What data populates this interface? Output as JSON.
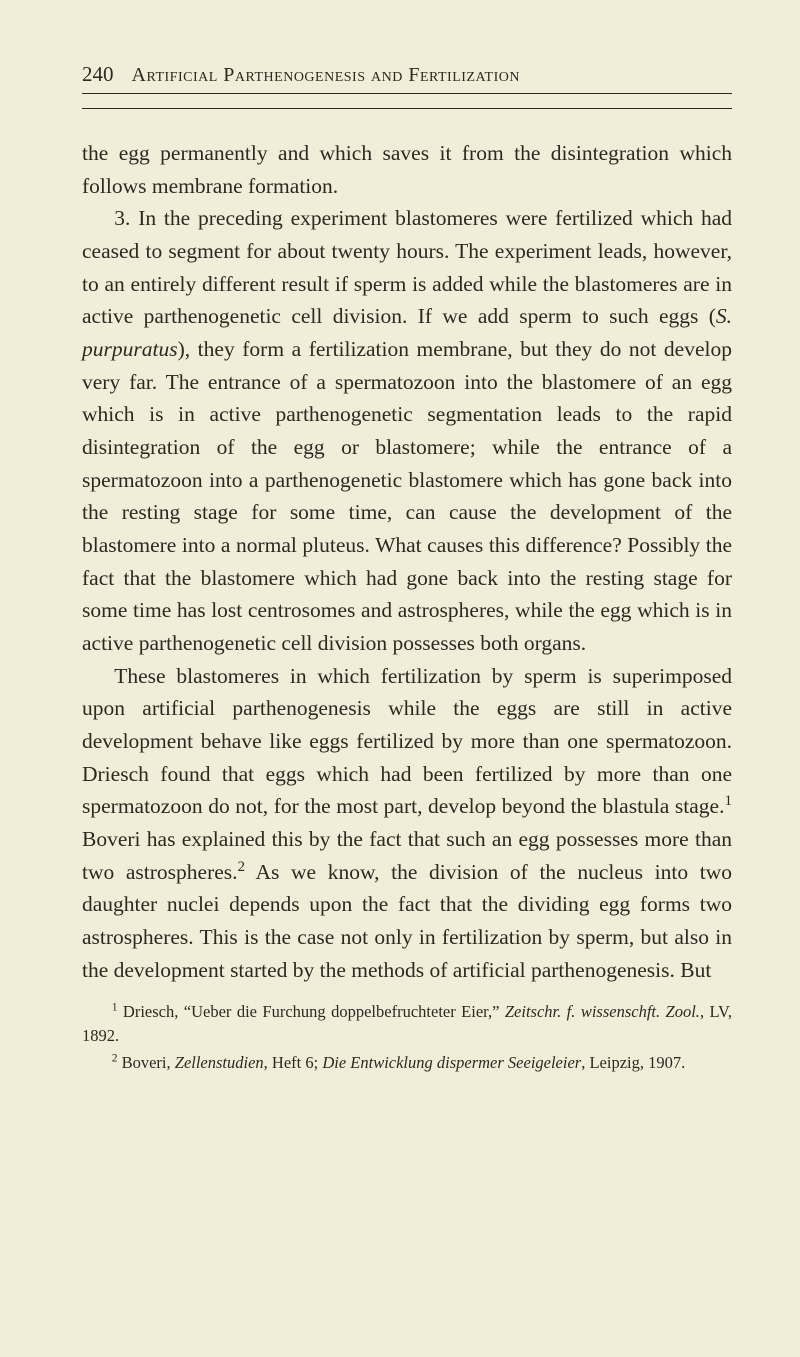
{
  "page": {
    "number": "240",
    "running_title": "Artificial Parthenogenesis and Fertilization"
  },
  "paragraphs": {
    "p1": "the egg permanently and which saves it from the disintegration which follows membrane formation.",
    "p2_a": "3. In the preceding experiment blastomeres were fertilized which had ceased to segment for about twenty hours. The experiment leads, however, to an entirely different result if sperm is added while the blastomeres are in active parthenogenetic cell division. If we add sperm to such eggs (",
    "p2_species": "S. purpuratus",
    "p2_b": "), they form a fertilization membrane, but they do not develop very far. The entrance of a spermatozoon into the blastomere of an egg which is in active parthenogenetic segmentation leads to the rapid disintegration of the egg or blastomere; while the entrance of a spermatozoon into a parthenogenetic blastomere which has gone back into the resting stage for some time, can cause the development of the blastomere into a normal pluteus. What causes this difference? Possibly the fact that the blastomere which had gone back into the resting stage for some time has lost centrosomes and astrospheres, while the egg which is in active parthenogenetic cell division possesses both organs.",
    "p3_a": "These blastomeres in which fertilization by sperm is superimposed upon artificial parthenogenesis while the eggs are still in active development behave like eggs fertilized by more than one spermatozoon. Driesch found that eggs which had been fertilized by more than one spermatozoon do not, for the most part, develop beyond the blastula stage.",
    "p3_sup1": "1",
    "p3_b": " Boveri has explained this by the fact that such an egg possesses more than two astrospheres.",
    "p3_sup2": "2",
    "p3_c": " As we know, the division of the nucleus into two daughter nuclei depends upon the fact that the dividing egg forms two astrospheres. This is the case not only in fertilization by sperm, but also in the development started by the methods of artificial parthenogenesis. But"
  },
  "footnotes": {
    "f1_sup": "1",
    "f1_a": " Driesch, “Ueber die Furchung doppelbefruchteter Eier,” ",
    "f1_i1": "Zeitschr. f. wissenschft. Zool.",
    "f1_b": ", LV, 1892.",
    "f2_sup": "2",
    "f2_a": " Boveri, ",
    "f2_i1": "Zellenstudien",
    "f2_b": ", Heft 6; ",
    "f2_i2": "Die Entwicklung dispermer Seeigeleier",
    "f2_c": ", Leipzig, 1907."
  },
  "colors": {
    "background": "#f2edd9",
    "text": "#2a2a22",
    "rule": "#2a2a22"
  },
  "typography": {
    "body_font_family": "Times New Roman",
    "body_font_size_pt": 16,
    "body_line_height": 1.52,
    "running_head_font_size_pt": 15,
    "footnote_font_size_pt": 12
  }
}
